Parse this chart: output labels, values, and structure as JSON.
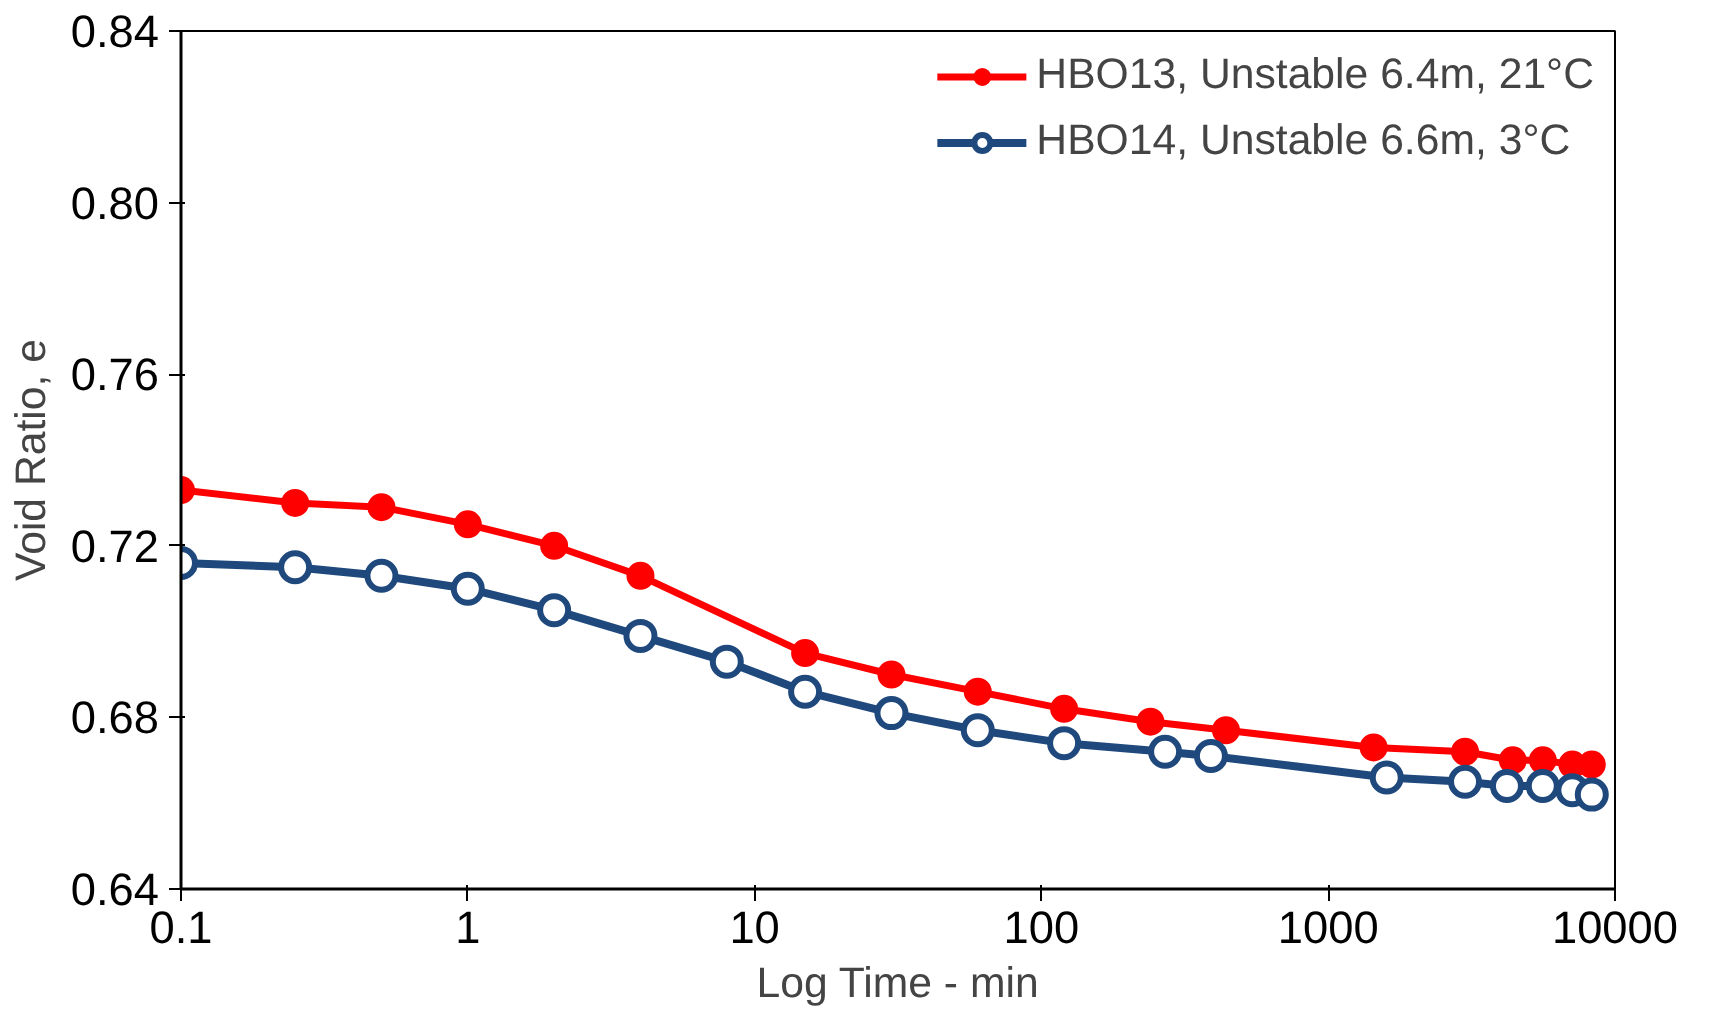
{
  "chart_data": {
    "type": "line",
    "xlabel": "Log Time - min",
    "ylabel": "Void Ratio, e",
    "log": "x",
    "xlim": [
      0.1,
      10000
    ],
    "xticks": [
      0.1,
      1,
      10,
      100,
      1000,
      10000
    ],
    "ylim": [
      0.64,
      0.84
    ],
    "yticks": [
      0.64,
      0.68,
      0.72,
      0.76,
      {
        "value": 0.8,
        "label": "0.80"
      },
      0.84
    ],
    "grid": false,
    "legend": "top right",
    "series": [
      {
        "name": "HBO13, Unstable 6.4m, 21°C",
        "color": "#ff0000",
        "marker": "circle",
        "x": [
          0.1,
          0.25,
          0.5,
          1,
          2,
          4,
          15,
          30,
          60,
          120,
          240,
          440,
          1440,
          3000,
          4400,
          5600,
          7100,
          8300
        ],
        "values": [
          0.733,
          0.73,
          0.729,
          0.725,
          0.72,
          0.713,
          0.695,
          0.69,
          0.686,
          0.682,
          0.679,
          0.677,
          0.673,
          0.672,
          0.67,
          0.67,
          0.669,
          0.669
        ]
      },
      {
        "name": "HBO14, Unstable 6.6m, 3°C",
        "color": "#1f497d",
        "marker": "open_circle",
        "x": [
          0.1,
          0.25,
          0.5,
          1,
          2,
          4,
          8,
          15,
          30,
          60,
          120,
          270,
          390,
          1600,
          3000,
          4200,
          5600,
          7100,
          8300
        ],
        "values": [
          0.716,
          0.715,
          0.713,
          0.71,
          0.705,
          0.699,
          0.693,
          0.686,
          0.681,
          0.677,
          0.674,
          0.672,
          0.671,
          0.666,
          0.665,
          0.664,
          0.664,
          0.663,
          0.662
        ]
      }
    ]
  }
}
